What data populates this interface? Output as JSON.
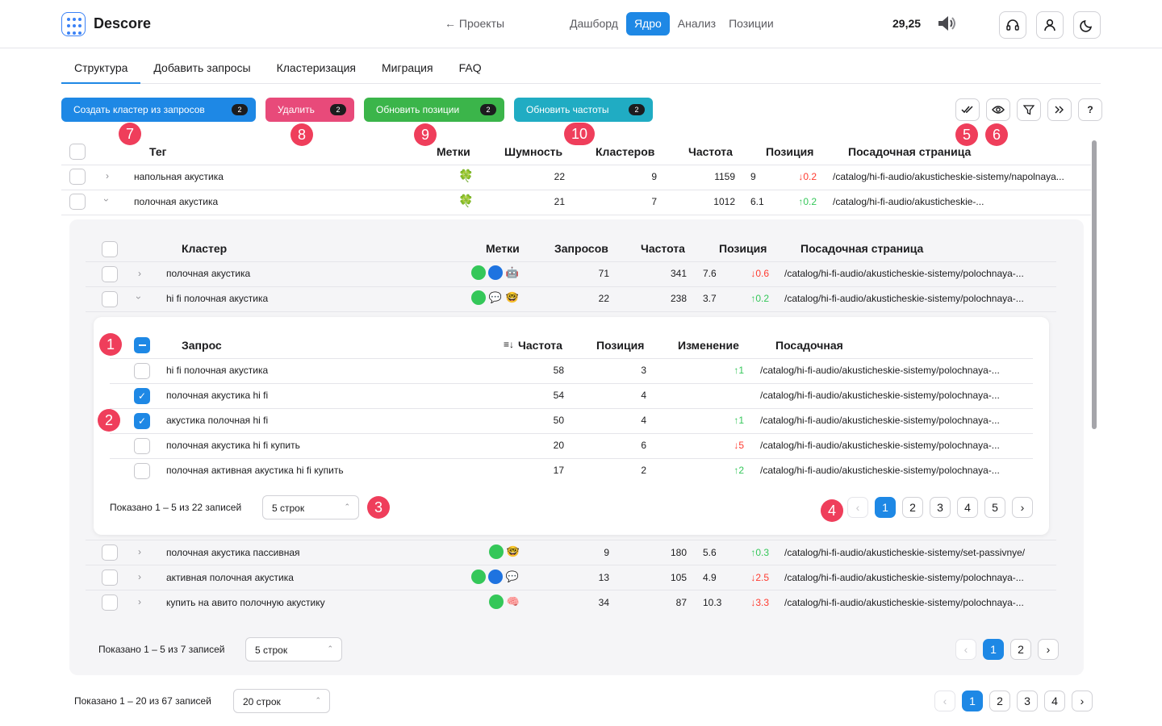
{
  "header": {
    "logo": "Descore",
    "back": "← Проекты",
    "nav": [
      {
        "label": "Дашборд",
        "active": false
      },
      {
        "label": "Ядро",
        "active": true
      },
      {
        "label": "Анализ",
        "active": false
      },
      {
        "label": "Позиции",
        "active": false
      }
    ],
    "balance": "29,25"
  },
  "tabs": [
    "Структура",
    "Добавить запросы",
    "Кластеризация",
    "Миграция",
    "FAQ"
  ],
  "actions": [
    {
      "label": "Создать кластер из запросов",
      "count": "2",
      "color": "#1e88e5"
    },
    {
      "label": "Удалить",
      "count": "2",
      "color": "#e84a7a"
    },
    {
      "label": "Обновить позиции",
      "count": "2",
      "color": "#3bb54a"
    },
    {
      "label": "Обновить частоты",
      "count": "2",
      "color": "#20acc3"
    }
  ],
  "markers": [
    "1",
    "2",
    "3",
    "4",
    "5",
    "6",
    "7",
    "8",
    "9",
    "10"
  ],
  "tags_table": {
    "headers": [
      "Тег",
      "Метки",
      "Шумность",
      "Кластеров",
      "Частота",
      "Позиция",
      "Посадочная страница"
    ],
    "rows": [
      {
        "name": "напольная акустика",
        "mark": "🍀",
        "noise": "22",
        "clusters": "9",
        "freq": "1159",
        "pos": "9",
        "delta": "↓0.2",
        "dir": "dn",
        "url": "/catalog/hi-fi-audio/akusticheskie-sistemy/napolnaya..."
      },
      {
        "name": "полочная акустика",
        "mark": "🍀",
        "noise": "21",
        "clusters": "7",
        "freq": "1012",
        "pos": "6.1",
        "delta": "↑0.2",
        "dir": "up",
        "url": "/catalog/hi-fi-audio/akusticheskie-..."
      }
    ],
    "footer": {
      "shown": "Показано 1 – 20 из 67 записей",
      "rows": "20 строк",
      "pages": [
        "1",
        "2",
        "3",
        "4"
      ]
    }
  },
  "clusters_table": {
    "headers": [
      "Кластер",
      "Метки",
      "Запросов",
      "Частота",
      "Позиция",
      "Посадочная страница"
    ],
    "rows": [
      {
        "name": "полочная акустика",
        "marks": [
          "🟢",
          "🔵",
          "🤖"
        ],
        "queries": "71",
        "freq": "341",
        "pos": "7.6",
        "delta": "↓0.6",
        "dir": "dn",
        "url": "/catalog/hi-fi-audio/akusticheskie-sistemy/polochnaya-..."
      },
      {
        "name": "hi fi полочная акустика",
        "marks": [
          "🟢",
          "💬",
          "🤓"
        ],
        "queries": "22",
        "freq": "238",
        "pos": "3.7",
        "delta": "↑0.2",
        "dir": "up",
        "url": "/catalog/hi-fi-audio/akusticheskie-sistemy/polochnaya-..."
      },
      {
        "name": "полочная акустика пассивная",
        "marks": [
          "🟢",
          "🤓"
        ],
        "queries": "9",
        "freq": "180",
        "pos": "5.6",
        "delta": "↑0.3",
        "dir": "up",
        "url": "/catalog/hi-fi-audio/akusticheskie-sistemy/set-passivnye/"
      },
      {
        "name": "активная полочная акустика",
        "marks": [
          "🟢",
          "🔵",
          "💬"
        ],
        "queries": "13",
        "freq": "105",
        "pos": "4.9",
        "delta": "↓2.5",
        "dir": "dn",
        "url": "/catalog/hi-fi-audio/akusticheskie-sistemy/polochnaya-..."
      },
      {
        "name": "купить на авито полочную акустику",
        "marks": [
          "🟢",
          "🧠"
        ],
        "queries": "34",
        "freq": "87",
        "pos": "10.3",
        "delta": "↓3.3",
        "dir": "dn",
        "url": "/catalog/hi-fi-audio/akusticheskie-sistemy/polochnaya-..."
      }
    ],
    "footer": {
      "shown": "Показано 1 – 5 из 7 записей",
      "rows": "5 строк",
      "pages": [
        "1",
        "2"
      ]
    }
  },
  "queries_table": {
    "headers": [
      "Запрос",
      "Частота",
      "Позиция",
      "Изменение",
      "Посадочная"
    ],
    "rows": [
      {
        "name": "hi fi полочная акустика",
        "checked": false,
        "freq": "58",
        "pos": "3",
        "change": "↑1",
        "dir": "up",
        "url": "/catalog/hi-fi-audio/akusticheskie-sistemy/polochnaya-..."
      },
      {
        "name": "полочная акустика hi fi",
        "checked": true,
        "freq": "54",
        "pos": "4",
        "change": "",
        "dir": "up",
        "url": "/catalog/hi-fi-audio/akusticheskie-sistemy/polochnaya-..."
      },
      {
        "name": "акустика полочная hi fi",
        "checked": true,
        "freq": "50",
        "pos": "4",
        "change": "↑1",
        "dir": "up",
        "url": "/catalog/hi-fi-audio/akusticheskie-sistemy/polochnaya-..."
      },
      {
        "name": "полочная акустика hi fi купить",
        "checked": false,
        "freq": "20",
        "pos": "6",
        "change": "↓5",
        "dir": "dn",
        "url": "/catalog/hi-fi-audio/akusticheskie-sistemy/polochnaya-..."
      },
      {
        "name": "полочная активная акустика hi fi купить",
        "checked": false,
        "freq": "17",
        "pos": "2",
        "change": "↑2",
        "dir": "up",
        "url": "/catalog/hi-fi-audio/akusticheskie-sistemy/polochnaya-..."
      }
    ],
    "footer": {
      "shown": "Показано 1 – 5 из 22 записей",
      "rows": "5 строк",
      "pages": [
        "1",
        "2",
        "3",
        "4",
        "5"
      ]
    }
  }
}
